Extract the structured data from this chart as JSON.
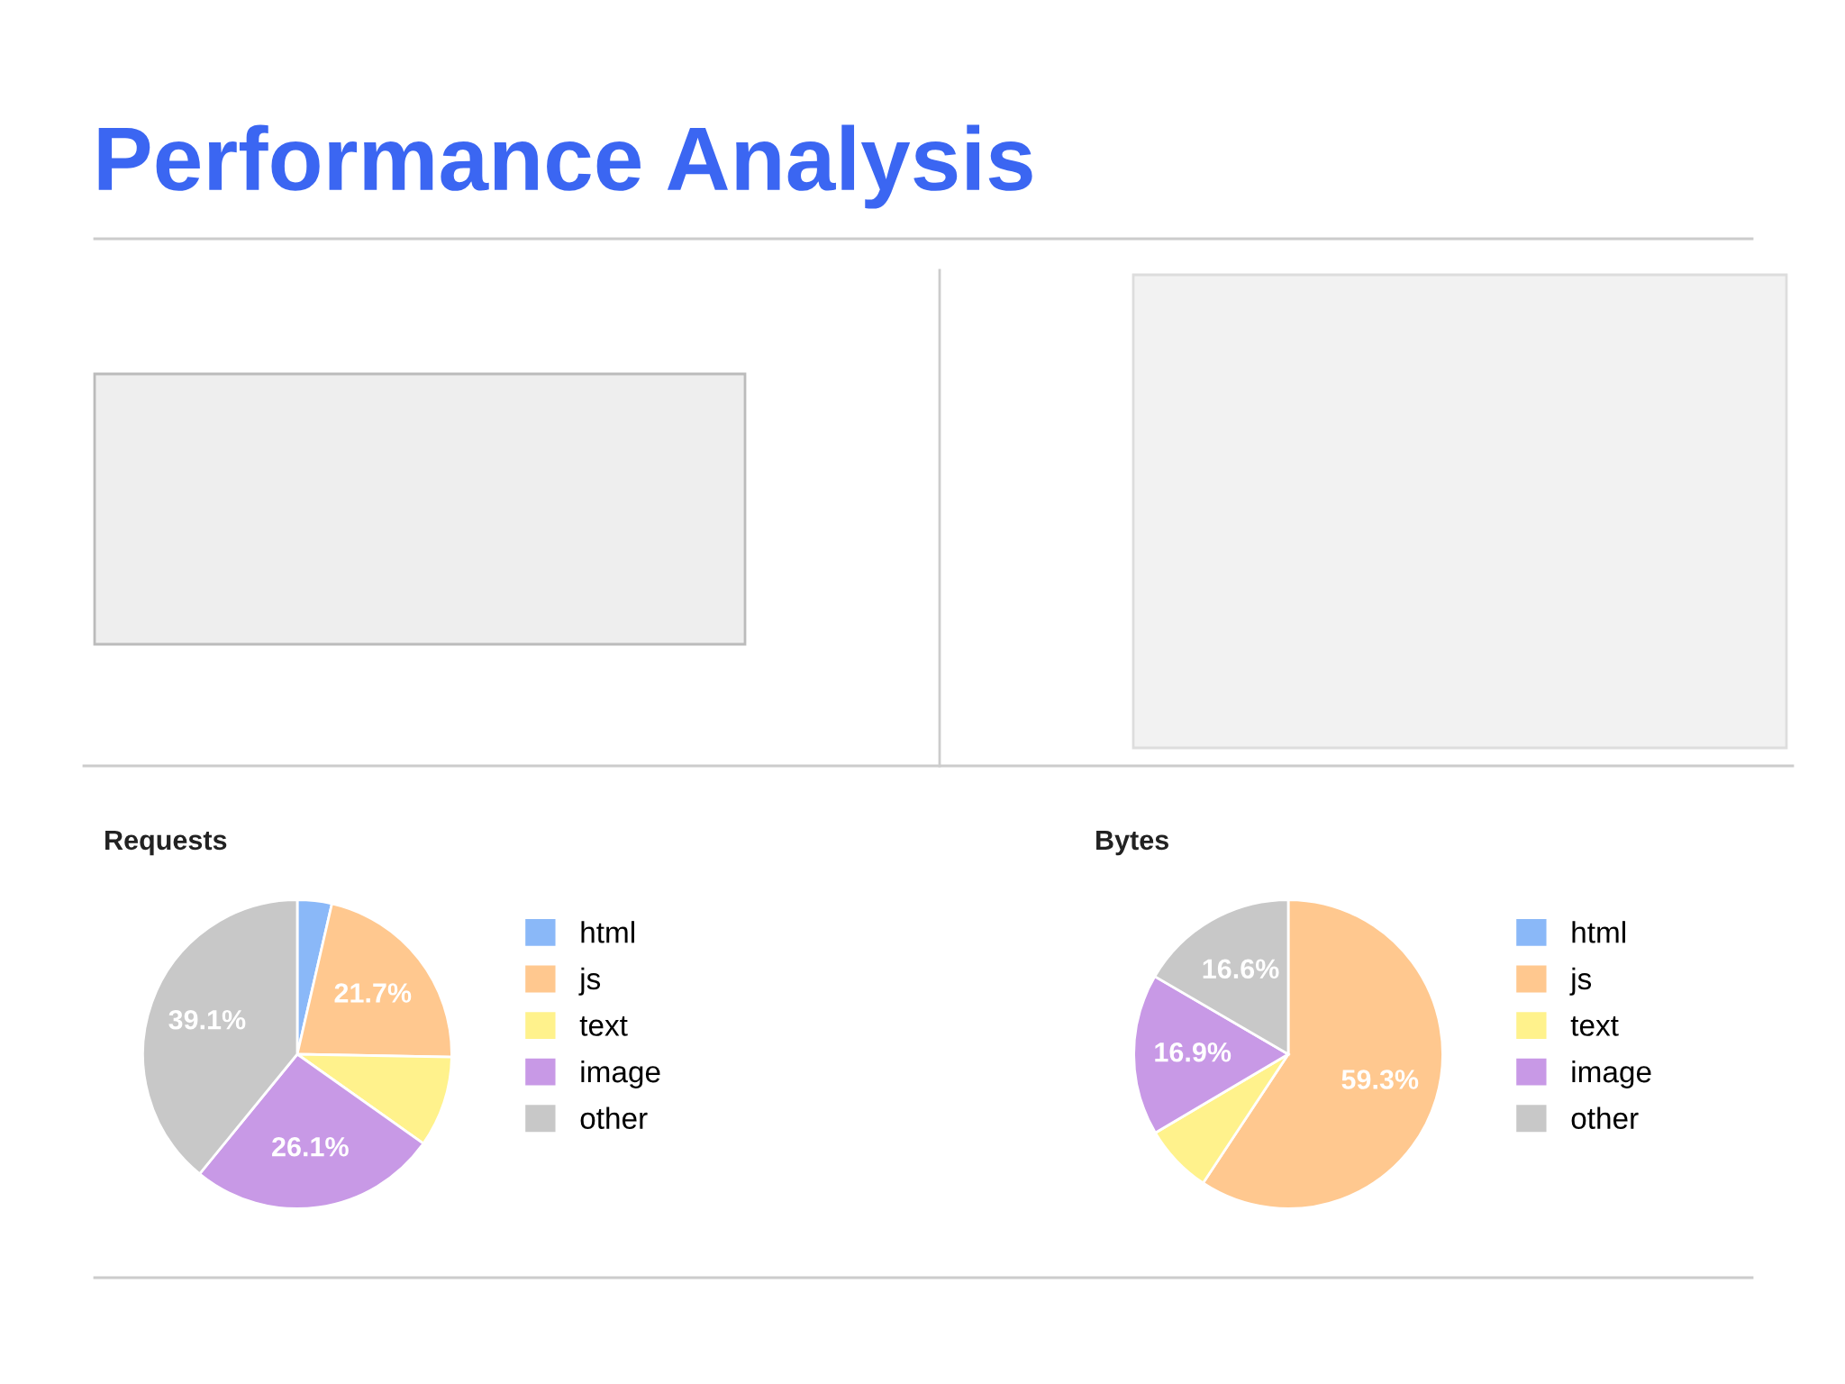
{
  "chart_data": [
    {
      "type": "other",
      "title": "Performance Analysis"
    },
    {
      "type": "pie",
      "title": "Requests",
      "categories": [
        "html",
        "js",
        "text",
        "image",
        "other"
      ],
      "values": [
        3.6,
        21.7,
        9.5,
        26.1,
        39.1
      ],
      "colors": [
        "#8ab8f8",
        "#ffc88f",
        "#fff28c",
        "#c899e6",
        "#c8c8c8"
      ],
      "value_labels": [
        null,
        "21.7%",
        null,
        "26.1%",
        "39.1%"
      ],
      "legend": "right"
    },
    {
      "type": "pie",
      "title": "Bytes",
      "categories": [
        "html",
        "js",
        "text",
        "image",
        "other"
      ],
      "values": [
        0,
        59.3,
        7.2,
        16.9,
        16.6
      ],
      "colors": [
        "#8ab8f8",
        "#ffc88f",
        "#fff28c",
        "#c899e6",
        "#c8c8c8"
      ],
      "value_labels": [
        null,
        "59.3%",
        null,
        "16.9%",
        "16.6%"
      ],
      "legend": "right"
    }
  ]
}
